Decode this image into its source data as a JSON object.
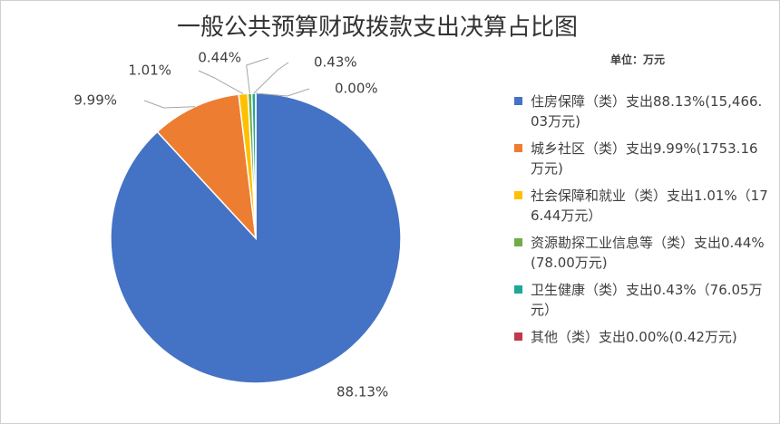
{
  "chart_data": {
    "type": "pie",
    "title": "一般公共预算财政拨款支出决算占比图",
    "unit_label": "单位：万元",
    "categories": [
      "住房保障（类）支出88.13%(15,466.03万元)",
      "城乡社区（类）支出9.99%(1753.16万元)",
      "社会保障和就业（类）支出1.01%（176.44万元）",
      "资源勘探工业信息等（类）支出0.44%(78.00万元)",
      "卫生健康（类）支出0.43%（76.05万元）",
      "其他（类）支出0.00%(0.42万元)"
    ],
    "values": [
      88.13,
      9.99,
      1.01,
      0.44,
      0.43,
      0.0
    ],
    "value_labels": [
      "88.13%",
      "9.99%",
      "1.01%",
      "0.44%",
      "0.43%",
      "0.00%"
    ],
    "colors": [
      "#4472c4",
      "#ed7d31",
      "#ffc000",
      "#70ad47",
      "#21a69a",
      "#c0394b"
    ]
  }
}
